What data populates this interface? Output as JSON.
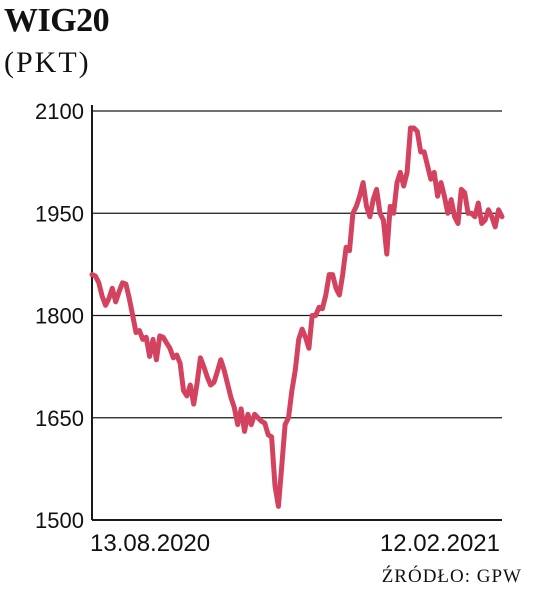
{
  "header": {
    "title": "WIG20",
    "subtitle": "(PKT)"
  },
  "source": "ŹRÓDŁO: GPW",
  "colors": {
    "line": "#d3435f",
    "grid": "#1a1a1a",
    "text": "#111111"
  },
  "chart_data": {
    "type": "line",
    "title": "WIG20",
    "ylabel": "(PKT)",
    "ylim": [
      1500,
      2100
    ],
    "yticks": [
      1500,
      1650,
      1800,
      1950,
      2100
    ],
    "xtick_labels": [
      "13.08.2020",
      "12.02.2021"
    ],
    "grid": true,
    "series": [
      {
        "values": [
          1860,
          1858,
          1848,
          1828,
          1815,
          1825,
          1840,
          1820,
          1835,
          1848,
          1846,
          1825,
          1800,
          1775,
          1778,
          1765,
          1768,
          1740,
          1765,
          1735,
          1770,
          1768,
          1760,
          1752,
          1738,
          1742,
          1730,
          1690,
          1682,
          1698,
          1670,
          1700,
          1738,
          1725,
          1710,
          1698,
          1702,
          1718,
          1735,
          1720,
          1700,
          1680,
          1665,
          1640,
          1663,
          1630,
          1655,
          1640,
          1655,
          1650,
          1645,
          1642,
          1625,
          1622,
          1550,
          1520,
          1580,
          1640,
          1650,
          1690,
          1720,
          1765,
          1780,
          1768,
          1752,
          1800,
          1800,
          1812,
          1810,
          1830,
          1860,
          1860,
          1840,
          1830,
          1860,
          1900,
          1895,
          1950,
          1960,
          1975,
          1995,
          1960,
          1945,
          1970,
          1985,
          1950,
          1940,
          1890,
          1960,
          1950,
          1995,
          2010,
          1990,
          2010,
          2075,
          2075,
          2070,
          2040,
          2040,
          2020,
          2000,
          2010,
          1975,
          1995,
          1975,
          1950,
          1970,
          1945,
          1935,
          1985,
          1980,
          1950,
          1950,
          1945,
          1965,
          1935,
          1940,
          1955,
          1945,
          1930,
          1955,
          1945
        ]
      }
    ]
  }
}
